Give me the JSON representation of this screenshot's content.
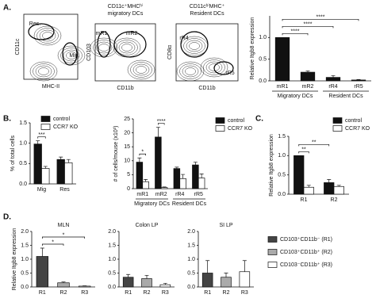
{
  "chart_data": [
    {
      "type": "flow",
      "panel": "A.",
      "ylabel": "CD11c",
      "xlabel": "MHC-II",
      "gates": [
        "Res.",
        "Mig."
      ]
    },
    {
      "type": "flow",
      "title": [
        "CD11c⁺MHCʰⁱ",
        "migratory DCs"
      ],
      "ylabel": "CD103",
      "xlabel": "CD11b",
      "gates": [
        "mR1",
        "mR2"
      ]
    },
    {
      "type": "flow",
      "title": [
        "CD11cʰⁱMHC⁺",
        "Resident DCs"
      ],
      "ylabel": "CD8α",
      "xlabel": "CD11b",
      "gates": [
        "rR4",
        "rR5"
      ]
    },
    {
      "type": "bar",
      "ylabel": "Relative Itgb8 expression",
      "categories": [
        "mR1",
        "mR2",
        "rR4",
        "rR5"
      ],
      "values": [
        1.0,
        0.2,
        0.08,
        0.02
      ],
      "errors": [
        0,
        0.03,
        0.04,
        0.01
      ],
      "color": "#111111",
      "group_labels": [
        "Migratory DCs",
        "Resident DCs"
      ],
      "ylim": [
        0,
        1.5
      ],
      "yticks": [
        {
          "value": 0,
          "label": "0.0"
        },
        {
          "value": 0.5,
          "label": "0.5"
        },
        {
          "value": 1,
          "label": "1.0"
        }
      ],
      "annotations": [
        {
          "text": "****",
          "between": [
            "mR1",
            "mR2"
          ]
        },
        {
          "text": "****",
          "between": [
            "mR1",
            "rR4"
          ]
        },
        {
          "text": "****",
          "between": [
            "mR1",
            "rR5"
          ]
        }
      ]
    },
    {
      "type": "bar",
      "panel": "B.",
      "ylabel": "% of total cells",
      "categories": [
        "Mig",
        "Res"
      ],
      "series": [
        {
          "name": "control",
          "color": "#111111",
          "values": [
            0.98,
            0.6
          ],
          "errors": [
            0.08,
            0.06
          ]
        },
        {
          "name": "CCR7 KO",
          "color": "#ffffff",
          "values": [
            0.38,
            0.52
          ],
          "errors": [
            0.05,
            0.08
          ]
        }
      ],
      "legend": "top-right",
      "ylim": [
        0,
        1.5
      ],
      "yticks": [
        {
          "value": 0,
          "label": "0.0"
        },
        {
          "value": 0.5,
          "label": "0.5"
        },
        {
          "value": 1,
          "label": "1.0"
        },
        {
          "value": 1.5,
          "label": "1.5"
        }
      ],
      "annotations": [
        {
          "text": "***",
          "between": [
            "Mig"
          ]
        }
      ]
    },
    {
      "type": "bar",
      "ylabel": "# of cells/mouse (x10³)",
      "categories": [
        "mR1",
        "mR2",
        "rR4",
        "rR5"
      ],
      "series": [
        {
          "name": "control",
          "color": "#111111",
          "values": [
            9.5,
            18.5,
            7.2,
            8.5
          ],
          "errors": [
            1.5,
            3.5,
            0.5,
            1.0
          ]
        },
        {
          "name": "CCR7 KO",
          "color": "#ffffff",
          "values": [
            2.5,
            0.4,
            3.6,
            3.8
          ],
          "errors": [
            0.8,
            0.2,
            1.5,
            1.5
          ]
        }
      ],
      "legend": "top-right",
      "group_labels": [
        "Migratory DCs",
        "Resident DCs"
      ],
      "ylim": [
        0,
        25
      ],
      "yticks": [
        0,
        5,
        10,
        15,
        20,
        25
      ],
      "annotations": [
        {
          "text": "*",
          "between": [
            "mR1"
          ]
        },
        {
          "text": "****",
          "between": [
            "mR2"
          ]
        }
      ]
    },
    {
      "type": "bar",
      "panel": "C.",
      "ylabel": "Relative Itgb8 expression",
      "categories": [
        "R1",
        "R2"
      ],
      "series": [
        {
          "name": "control",
          "color": "#111111",
          "values": [
            1.0,
            0.3
          ],
          "errors": [
            0,
            0.08
          ]
        },
        {
          "name": "CCR7 KO",
          "color": "#ffffff",
          "values": [
            0.18,
            0.2
          ],
          "errors": [
            0.05,
            0.03
          ]
        }
      ],
      "legend": "top-right",
      "ylim": [
        0,
        1.5
      ],
      "yticks": [
        {
          "value": 0,
          "label": "0.0"
        },
        {
          "value": 0.5,
          "label": "0.5"
        },
        {
          "value": 1,
          "label": "1.0"
        },
        {
          "value": 1.5,
          "label": "1.5"
        }
      ],
      "annotations": [
        {
          "text": "**",
          "between": [
            "R1"
          ]
        },
        {
          "text": "**",
          "between": [
            "R1",
            "R2"
          ]
        }
      ]
    },
    {
      "type": "bar",
      "panel": "D.",
      "title": "MLN",
      "ylabel": "Relative Itgb8 expression",
      "categories": [
        "R1",
        "R2",
        "R3"
      ],
      "values": [
        1.1,
        0.15,
        0.03
      ],
      "errors": [
        0.3,
        0.03,
        0.01
      ],
      "colors": [
        "#444444",
        "#aaaaaa",
        "#ffffff"
      ],
      "ylim": [
        0,
        2
      ],
      "yticks": [
        {
          "value": 0,
          "label": "0.0"
        },
        {
          "value": 0.5,
          "label": "0.5"
        },
        {
          "value": 1,
          "label": "1.0"
        },
        {
          "value": 1.5,
          "label": "1.5"
        },
        {
          "value": 2,
          "label": "2.0"
        }
      ],
      "annotations": [
        {
          "text": "*",
          "between": [
            "R1",
            "R2"
          ]
        },
        {
          "text": "*",
          "between": [
            "R1",
            "R3"
          ]
        }
      ]
    },
    {
      "type": "bar",
      "title": "Colon LP",
      "categories": [
        "R1",
        "R2",
        "R3"
      ],
      "values": [
        0.35,
        0.3,
        0.08
      ],
      "errors": [
        0.1,
        0.12,
        0.05
      ],
      "colors": [
        "#444444",
        "#aaaaaa",
        "#ffffff"
      ],
      "ylim": [
        0,
        2
      ],
      "yticks": [
        {
          "value": 0,
          "label": "0.0"
        },
        {
          "value": 0.5,
          "label": "0.5"
        },
        {
          "value": 1,
          "label": "1.0"
        },
        {
          "value": 1.5,
          "label": "1.5"
        },
        {
          "value": 2,
          "label": "2.0"
        }
      ]
    },
    {
      "type": "bar",
      "title": "SI LP",
      "categories": [
        "R1",
        "R2",
        "R3"
      ],
      "values": [
        0.5,
        0.35,
        0.55
      ],
      "errors": [
        0.45,
        0.15,
        0.4
      ],
      "colors": [
        "#444444",
        "#aaaaaa",
        "#ffffff"
      ],
      "legend_labels": [
        "CD103⁺CD11b⁻ (R1)",
        "CD103⁺CD11b⁺ (R2)",
        "CD103⁻CD11b⁺ (R3)"
      ],
      "legend": "right",
      "ylim": [
        0,
        2
      ],
      "yticks": [
        {
          "value": 0,
          "label": "0.0"
        },
        {
          "value": 0.5,
          "label": "0.5"
        },
        {
          "value": 1,
          "label": "1.0"
        },
        {
          "value": 1.5,
          "label": "1.5"
        },
        {
          "value": 2,
          "label": "2.0"
        }
      ]
    }
  ]
}
